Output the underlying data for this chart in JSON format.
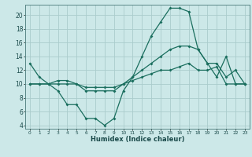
{
  "xlabel": "Humidex (Indice chaleur)",
  "bg_color": "#cce8e8",
  "grid_color": "#aacccc",
  "line_color": "#1a6e5e",
  "xlim": [
    -0.5,
    23.5
  ],
  "ylim": [
    3.5,
    21.5
  ],
  "yticks": [
    4,
    6,
    8,
    10,
    12,
    14,
    16,
    18,
    20
  ],
  "xticks": [
    0,
    1,
    2,
    3,
    4,
    5,
    6,
    7,
    8,
    9,
    10,
    11,
    12,
    13,
    14,
    15,
    16,
    17,
    18,
    19,
    20,
    21,
    22,
    23
  ],
  "xtick_labels": [
    "0",
    "1",
    "2",
    "3",
    "4",
    "5",
    "6",
    "7",
    "8",
    "9",
    "10",
    "11",
    "12",
    "13",
    "14",
    "15",
    "16",
    "17",
    "18",
    "19",
    "20",
    "21",
    "22",
    "23"
  ],
  "line1_x": [
    0,
    1,
    2,
    3,
    4,
    5,
    6,
    7,
    8,
    9,
    10,
    11,
    12,
    13,
    14,
    15,
    16,
    17,
    18,
    19,
    20,
    21,
    22,
    23
  ],
  "line1_y": [
    13,
    11,
    10,
    9,
    7,
    7,
    5,
    5,
    4,
    5,
    9,
    11,
    14,
    17,
    19,
    21,
    21,
    20.5,
    15,
    13,
    11,
    14,
    10,
    10
  ],
  "line2_x": [
    0,
    1,
    2,
    3,
    4,
    5,
    6,
    7,
    8,
    9,
    10,
    11,
    12,
    13,
    14,
    15,
    16,
    17,
    18,
    19,
    20,
    21,
    22,
    23
  ],
  "line2_y": [
    10,
    10,
    10,
    10,
    10,
    10,
    9,
    9,
    9,
    9,
    10,
    11,
    12,
    13,
    14,
    15,
    15.5,
    15.5,
    15,
    13,
    13,
    11,
    12,
    10
  ],
  "line3_x": [
    0,
    1,
    2,
    3,
    4,
    5,
    6,
    7,
    8,
    9,
    10,
    11,
    12,
    13,
    14,
    15,
    16,
    17,
    18,
    19,
    20,
    21,
    22,
    23
  ],
  "line3_y": [
    10,
    10,
    10,
    10.5,
    10.5,
    10,
    9.5,
    9.5,
    9.5,
    9.5,
    10,
    10.5,
    11,
    11.5,
    12,
    12,
    12.5,
    13,
    12,
    12,
    12.5,
    10,
    10,
    10
  ]
}
